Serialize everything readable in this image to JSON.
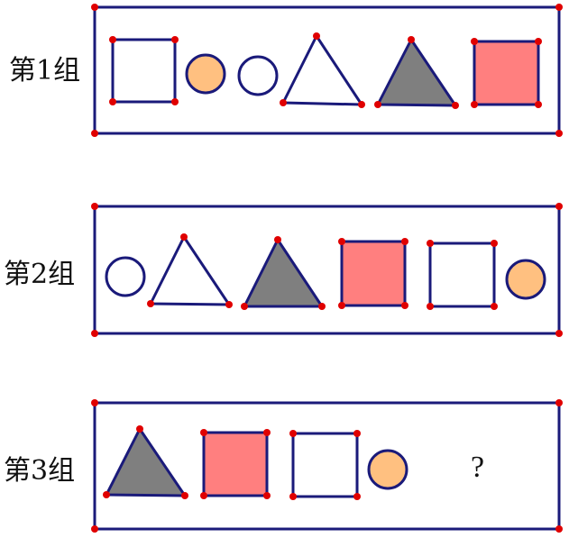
{
  "groups": [
    {
      "label": "第1组",
      "shapes": [
        "square-white",
        "circle-orange",
        "circle-white",
        "triangle-white",
        "triangle-gray",
        "square-pink"
      ]
    },
    {
      "label": "第2组",
      "shapes": [
        "circle-white",
        "triangle-white",
        "triangle-gray",
        "square-pink",
        "square-white",
        "circle-orange"
      ]
    },
    {
      "label": "第3组",
      "shapes": [
        "triangle-gray",
        "square-pink",
        "square-white",
        "circle-orange"
      ],
      "unknown": "?"
    }
  ],
  "colors": {
    "frame": "#1a1a7a",
    "vertex": "#e00000",
    "gray": "#7f7f7f",
    "pink": "#ff7f7f",
    "orange": "#ffc080",
    "white": "#ffffff"
  }
}
